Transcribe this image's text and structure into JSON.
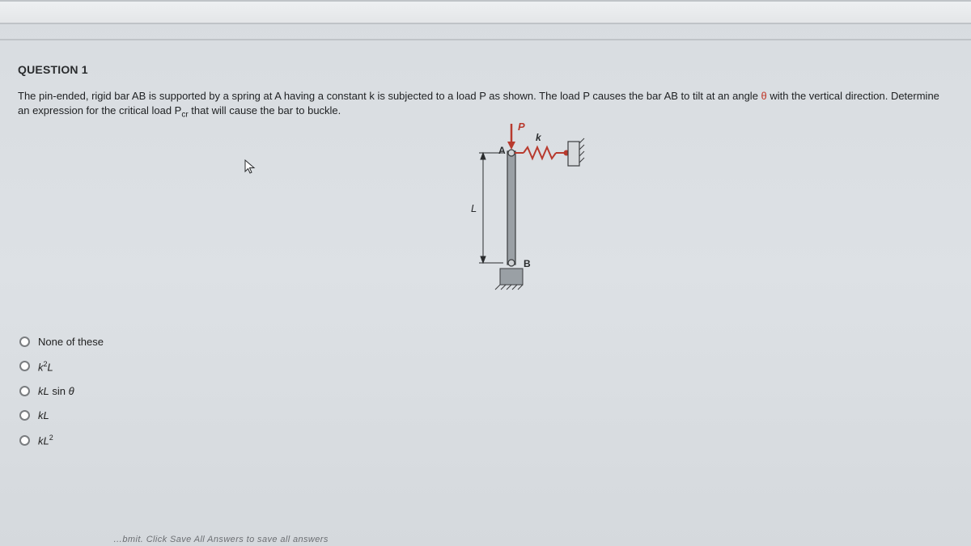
{
  "question": {
    "title": "QUESTION 1",
    "text_part1": "The pin-ended, rigid bar AB is supported by a spring at A having a constant k is subjected to a load P as shown.  The load P causes the bar AB to tilt at an angle ",
    "theta1": "θ",
    "text_part2": " with the vertical direction.  Determine an expression for the critical load P",
    "subscript": "cr",
    "text_part3": " that will cause the bar to buckle."
  },
  "diagram": {
    "labels": {
      "P": "P",
      "k": "k",
      "A": "A",
      "B": "B",
      "L": "L"
    },
    "colors": {
      "arrow": "#b83a2e",
      "spring": "#b83a2e",
      "bar": "#9aa0a5",
      "outline": "#3a3c3e",
      "support": "#9aa0a5",
      "text": "#2a2c2e"
    }
  },
  "options": [
    {
      "label": "None of these",
      "html": "None of these"
    },
    {
      "label": "k^2 L",
      "html": "<i>k</i><sup>2</sup><i>L</i>"
    },
    {
      "label": "kL sin theta",
      "html": "<i>kL</i> sin <i>θ</i>"
    },
    {
      "label": "kL",
      "html": "<i>kL</i>"
    },
    {
      "label": "kL^2",
      "html": "<i>kL</i><sup>2</sup>"
    }
  ],
  "footer": "…bmit. Click Save All Answers to save all answers"
}
